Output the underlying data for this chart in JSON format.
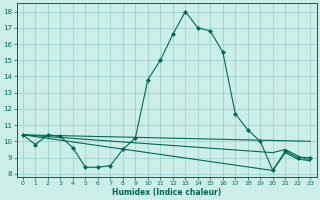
{
  "xlabel": "Humidex (Indice chaleur)",
  "xlim": [
    -0.5,
    23.5
  ],
  "ylim": [
    7.8,
    18.5
  ],
  "xticks": [
    0,
    1,
    2,
    3,
    4,
    5,
    6,
    7,
    8,
    9,
    10,
    11,
    12,
    13,
    14,
    15,
    16,
    17,
    18,
    19,
    20,
    21,
    22,
    23
  ],
  "yticks": [
    8,
    9,
    10,
    11,
    12,
    13,
    14,
    15,
    16,
    17,
    18
  ],
  "bg_color": "#cceee8",
  "line_color": "#006655",
  "grid_color": "#99cccc",
  "curves": [
    {
      "x": [
        0,
        1,
        2,
        3,
        4,
        5,
        6,
        7,
        8,
        9,
        10,
        11,
        12,
        13,
        14,
        15,
        16,
        17,
        18,
        19,
        20,
        21,
        22,
        23
      ],
      "y": [
        10.4,
        9.8,
        10.4,
        10.3,
        9.6,
        8.4,
        8.4,
        8.5,
        9.5,
        10.2,
        13.8,
        15.0,
        16.6,
        18.0,
        17.0,
        16.8,
        15.5,
        11.7,
        10.7,
        10.0,
        8.2,
        9.4,
        9.0,
        9.0
      ],
      "markers": true
    },
    {
      "x": [
        0,
        23
      ],
      "y": [
        10.4,
        10.0
      ],
      "markers": false
    },
    {
      "x": [
        0,
        20,
        21,
        22,
        23
      ],
      "y": [
        10.4,
        9.3,
        9.5,
        9.1,
        8.8
      ],
      "markers": false
    },
    {
      "x": [
        0,
        20,
        21,
        22,
        23
      ],
      "y": [
        10.4,
        8.2,
        9.3,
        8.9,
        8.8
      ],
      "markers": false
    }
  ]
}
